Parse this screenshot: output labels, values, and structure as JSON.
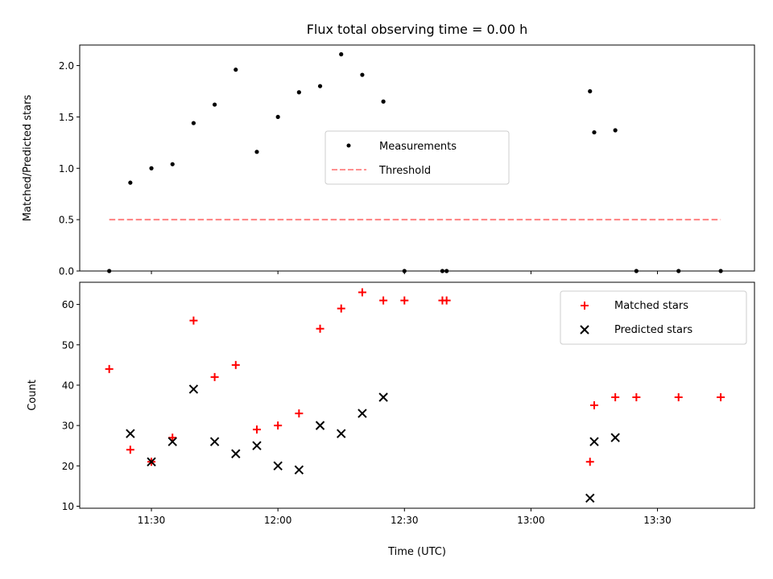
{
  "chart_data": [
    {
      "type": "scatter",
      "title": "Flux total observing time = 0.00 h",
      "xlabel": "",
      "ylabel": "Matched/Predicted stars",
      "xlim": [
        "11:13",
        "13:53"
      ],
      "ylim": [
        0,
        2.2
      ],
      "yticks": [
        0.0,
        0.5,
        1.0,
        1.5,
        2.0
      ],
      "ytick_labels": [
        "0.0",
        "0.5",
        "1.0",
        "1.5",
        "2.0"
      ],
      "xticks": [
        "11:30",
        "12:00",
        "12:30",
        "13:00",
        "13:30"
      ],
      "show_xtick_labels": false,
      "grid": false,
      "legend_position": "center-right",
      "series": [
        {
          "name": "Measurements",
          "marker": "dot",
          "color": "#000000",
          "points": [
            {
              "x": "11:20",
              "y": 0.0
            },
            {
              "x": "11:25",
              "y": 0.86
            },
            {
              "x": "11:30",
              "y": 1.0
            },
            {
              "x": "11:35",
              "y": 1.04
            },
            {
              "x": "11:40",
              "y": 1.44
            },
            {
              "x": "11:45",
              "y": 1.62
            },
            {
              "x": "11:50",
              "y": 1.96
            },
            {
              "x": "11:55",
              "y": 1.16
            },
            {
              "x": "12:00",
              "y": 1.5
            },
            {
              "x": "12:05",
              "y": 1.74
            },
            {
              "x": "12:10",
              "y": 1.8
            },
            {
              "x": "12:15",
              "y": 2.11
            },
            {
              "x": "12:20",
              "y": 1.91
            },
            {
              "x": "12:25",
              "y": 1.65
            },
            {
              "x": "12:30",
              "y": 0.0
            },
            {
              "x": "12:39",
              "y": 0.0
            },
            {
              "x": "12:40",
              "y": 0.0
            },
            {
              "x": "13:14",
              "y": 1.75
            },
            {
              "x": "13:15",
              "y": 1.35
            },
            {
              "x": "13:20",
              "y": 1.37
            },
            {
              "x": "13:25",
              "y": 0.0
            },
            {
              "x": "13:35",
              "y": 0.0
            },
            {
              "x": "13:45",
              "y": 0.0
            }
          ]
        },
        {
          "name": "Threshold",
          "type": "line",
          "style": "dashed",
          "color": "#ff8080",
          "points": [
            {
              "x": "11:20",
              "y": 0.5
            },
            {
              "x": "13:45",
              "y": 0.5
            }
          ]
        }
      ]
    },
    {
      "type": "scatter",
      "title": "",
      "xlabel": "Time (UTC)",
      "ylabel": "Count",
      "xlim": [
        "11:13",
        "13:53"
      ],
      "ylim": [
        9.5,
        65.5
      ],
      "yticks": [
        10,
        20,
        30,
        40,
        50,
        60
      ],
      "ytick_labels": [
        "10",
        "20",
        "30",
        "40",
        "50",
        "60"
      ],
      "xticks": [
        "11:30",
        "12:00",
        "12:30",
        "13:00",
        "13:30"
      ],
      "xtick_labels": [
        "11:30",
        "12:00",
        "12:30",
        "13:00",
        "13:30"
      ],
      "grid": false,
      "legend_position": "top-right",
      "series": [
        {
          "name": "Matched stars",
          "marker": "plus",
          "color": "#ff0000",
          "points": [
            {
              "x": "11:20",
              "y": 44
            },
            {
              "x": "11:25",
              "y": 24
            },
            {
              "x": "11:30",
              "y": 21
            },
            {
              "x": "11:35",
              "y": 27
            },
            {
              "x": "11:40",
              "y": 56
            },
            {
              "x": "11:45",
              "y": 42
            },
            {
              "x": "11:50",
              "y": 45
            },
            {
              "x": "11:55",
              "y": 29
            },
            {
              "x": "12:00",
              "y": 30
            },
            {
              "x": "12:05",
              "y": 33
            },
            {
              "x": "12:10",
              "y": 54
            },
            {
              "x": "12:15",
              "y": 59
            },
            {
              "x": "12:20",
              "y": 63
            },
            {
              "x": "12:25",
              "y": 61
            },
            {
              "x": "12:30",
              "y": 61
            },
            {
              "x": "12:39",
              "y": 61
            },
            {
              "x": "12:40",
              "y": 61
            },
            {
              "x": "13:14",
              "y": 21
            },
            {
              "x": "13:15",
              "y": 35
            },
            {
              "x": "13:20",
              "y": 37
            },
            {
              "x": "13:25",
              "y": 37
            },
            {
              "x": "13:35",
              "y": 37
            },
            {
              "x": "13:45",
              "y": 37
            }
          ]
        },
        {
          "name": "Predicted stars",
          "marker": "x",
          "color": "#000000",
          "points": [
            {
              "x": "11:25",
              "y": 28
            },
            {
              "x": "11:30",
              "y": 21
            },
            {
              "x": "11:35",
              "y": 26
            },
            {
              "x": "11:40",
              "y": 39
            },
            {
              "x": "11:45",
              "y": 26
            },
            {
              "x": "11:50",
              "y": 23
            },
            {
              "x": "11:55",
              "y": 25
            },
            {
              "x": "12:00",
              "y": 20
            },
            {
              "x": "12:05",
              "y": 19
            },
            {
              "x": "12:10",
              "y": 30
            },
            {
              "x": "12:15",
              "y": 28
            },
            {
              "x": "12:20",
              "y": 33
            },
            {
              "x": "12:25",
              "y": 37
            },
            {
              "x": "13:14",
              "y": 12
            },
            {
              "x": "13:15",
              "y": 26
            },
            {
              "x": "13:20",
              "y": 27
            }
          ]
        }
      ]
    }
  ]
}
